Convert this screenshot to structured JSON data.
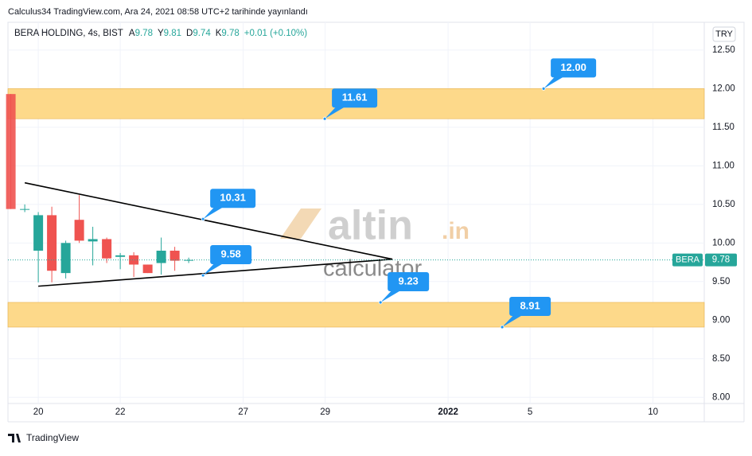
{
  "header": "Calculus34 TradingView.com, Ara 24, 2021 08:58 UTC+2 tarihinde yayınlandı",
  "footer": "TradingView",
  "watermark": {
    "main": "altin",
    "suffix": ".in",
    "sub": "calculator"
  },
  "chart_data": {
    "type": "candlestick",
    "title": "BERA HOLDING, 4s, BIST",
    "ohlc_legend": [
      {
        "key": "A",
        "value": 9.78
      },
      {
        "key": "Y",
        "value": 9.81
      },
      {
        "key": "D",
        "value": 9.74
      },
      {
        "key": "K",
        "value": 9.78
      }
    ],
    "change": "+0.01 (+0.10%)",
    "currency": "TRY",
    "x": [
      -0.67,
      -0.33,
      0,
      0.33,
      0.67,
      1,
      1.33,
      1.67,
      2,
      2.33,
      2.67,
      3,
      3.33,
      3.67
    ],
    "open": [
      11.93,
      10.43,
      9.9,
      10.36,
      9.61,
      10.3,
      10.02,
      10.05,
      9.82,
      9.84,
      9.72,
      9.74,
      9.9,
      9.78
    ],
    "high": [
      11.93,
      10.5,
      10.4,
      10.47,
      10.03,
      10.62,
      10.21,
      10.07,
      9.87,
      9.88,
      9.72,
      10.07,
      9.95,
      9.81
    ],
    "low": [
      10.44,
      10.4,
      9.49,
      9.49,
      9.54,
      10.0,
      9.71,
      9.74,
      9.66,
      9.56,
      9.61,
      9.59,
      9.64,
      9.74
    ],
    "close": [
      10.44,
      10.44,
      10.36,
      9.64,
      10.0,
      10.03,
      10.05,
      9.8,
      9.84,
      9.72,
      9.61,
      9.9,
      9.77,
      9.78
    ],
    "up_color": "#26a69a",
    "down_color": "#ef5350",
    "xlim": [
      -0.74,
      16.25
    ],
    "xticks": [
      {
        "value": 0,
        "label": "20"
      },
      {
        "value": 2,
        "label": "22"
      },
      {
        "value": 5,
        "label": "27"
      },
      {
        "value": 7,
        "label": "29"
      },
      {
        "value": 10,
        "label": "2022"
      },
      {
        "value": 12,
        "label": "5"
      },
      {
        "value": 15,
        "label": "10"
      }
    ],
    "ylim": [
      7.92,
      12.86
    ],
    "yticks": [
      {
        "value": 8,
        "label": "8.00"
      },
      {
        "value": 8.5,
        "label": "8.50"
      },
      {
        "value": 9,
        "label": "9.00"
      },
      {
        "value": 9.5,
        "label": "9.50"
      },
      {
        "value": 10,
        "label": "10.00"
      },
      {
        "value": 10.5,
        "label": "10.50"
      },
      {
        "value": 11,
        "label": "11.00"
      },
      {
        "value": 11.5,
        "label": "11.50"
      },
      {
        "value": 12,
        "label": "12.00"
      },
      {
        "value": 12.5,
        "label": "12.50"
      }
    ],
    "grid": true,
    "zones": [
      {
        "from": 11.61,
        "to": 12,
        "color": "#fdd98a"
      },
      {
        "from": 8.91,
        "to": 9.23,
        "color": "#fdd98a"
      }
    ],
    "trendlines": [
      {
        "x": [
          -0.33,
          8.64
        ],
        "y": [
          10.78,
          9.79
        ]
      },
      {
        "x": [
          0,
          8.64
        ],
        "y": [
          9.44,
          9.79
        ]
      }
    ],
    "callouts": [
      {
        "x": 12.33,
        "value": 12,
        "label": "12.00"
      },
      {
        "x": 6.99,
        "value": 11.61,
        "label": "11.61"
      },
      {
        "x": 4.02,
        "value": 10.31,
        "label": "10.31"
      },
      {
        "x": 4.02,
        "value": 9.58,
        "label": "9.58"
      },
      {
        "x": 8.35,
        "value": 9.23,
        "label": "9.23"
      },
      {
        "x": 11.32,
        "value": 8.91,
        "label": "8.91"
      }
    ],
    "callout_color": "#2196f3",
    "last_price": {
      "name": "BERA",
      "value": 9.78,
      "color": "#26a69a"
    }
  }
}
